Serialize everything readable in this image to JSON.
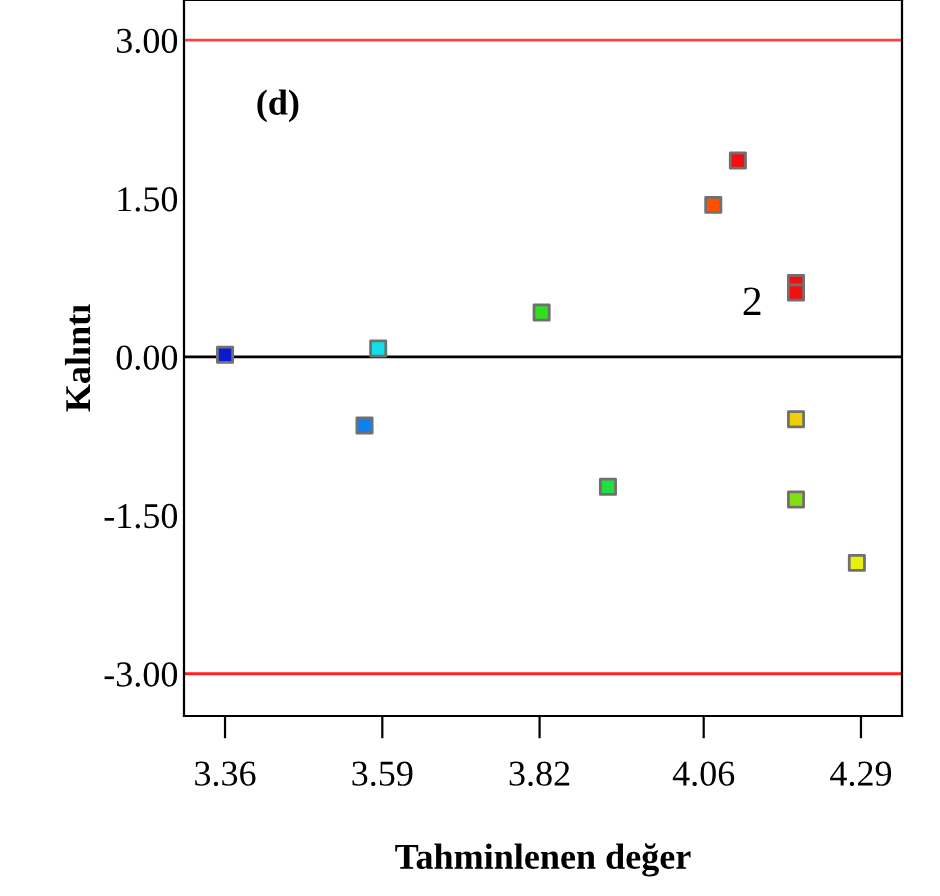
{
  "chart_data": {
    "type": "scatter",
    "xlabel": "Tahminlenen değer",
    "ylabel": "Kalıntı",
    "marker": "square",
    "grid": false,
    "x": [
      3.36,
      3.564,
      3.584,
      3.823,
      3.92,
      4.074,
      4.11,
      4.195,
      4.195,
      4.195,
      4.195,
      4.284
    ],
    "values": [
      0.02,
      -0.65,
      0.08,
      0.42,
      -1.23,
      1.44,
      1.86,
      0.7,
      0.61,
      -0.59,
      -1.35,
      -1.95
    ],
    "colors": [
      "#0a1ad0",
      "#1080f0",
      "#10e0e8",
      "#30e020",
      "#20e040",
      "#ff5000",
      "#f01010",
      "#f01010",
      "#f01010",
      "#f0d000",
      "#80e010",
      "#e8f010"
    ],
    "xlim": [
      3.3,
      4.35
    ],
    "ylim": [
      -3.4,
      3.38
    ],
    "xticks": [
      3.36,
      3.59,
      3.82,
      4.06,
      4.29
    ],
    "yticks": [
      {
        "value": 3,
        "label": "3.00"
      },
      {
        "value": 1.5,
        "label": "1.50"
      },
      {
        "value": 0,
        "label": "0.00"
      },
      {
        "value": -1.5,
        "label": "-1.50"
      },
      {
        "value": -3,
        "label": "-3.00"
      }
    ],
    "ref_lines": [
      {
        "axis": "y",
        "value": 3,
        "color": "#ff4040",
        "label": null
      },
      {
        "axis": "y",
        "value": 0,
        "color": "#000000",
        "label": null
      },
      {
        "axis": "y",
        "value": -3,
        "color": "#ff2020",
        "label": null
      }
    ],
    "annotations": [
      "(d)",
      {
        "text": "2",
        "x": 4.195,
        "y": 0.65
      }
    ]
  }
}
